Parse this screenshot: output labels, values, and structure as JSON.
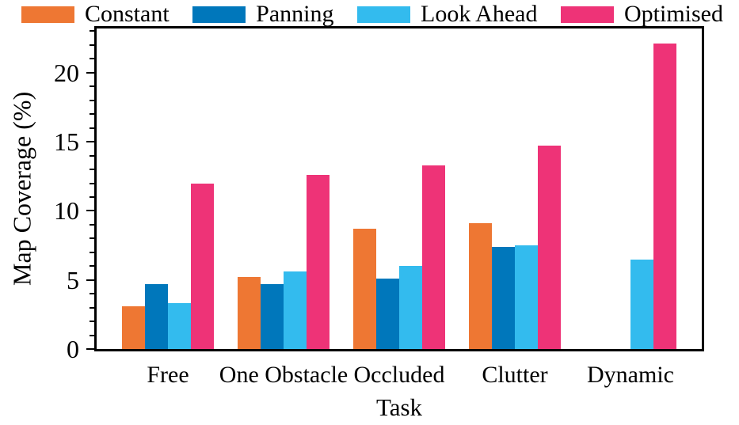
{
  "chart_data": {
    "type": "bar",
    "title": "",
    "xlabel": "Task",
    "ylabel": "Map Coverage (%)",
    "categories": [
      "Free",
      "One Obstacle",
      "Occluded",
      "Clutter",
      "Dynamic"
    ],
    "series": [
      {
        "name": "Constant",
        "color": "#EE7733",
        "values": [
          3.1,
          5.2,
          8.7,
          9.1,
          0
        ]
      },
      {
        "name": "Panning",
        "color": "#0077BB",
        "values": [
          4.7,
          4.7,
          5.1,
          7.4,
          0
        ]
      },
      {
        "name": "Look Ahead",
        "color": "#33BBEE",
        "values": [
          3.3,
          5.6,
          6.0,
          7.5,
          6.5
        ]
      },
      {
        "name": "Optimised",
        "color": "#EE3377",
        "values": [
          12.0,
          12.6,
          13.3,
          14.7,
          22.1
        ]
      }
    ],
    "ylim": [
      0,
      23.2
    ],
    "yticks": [
      0,
      5,
      10,
      15,
      20
    ],
    "ytick_labels": [
      "0",
      "5",
      "10",
      "15",
      "20"
    ],
    "minor_tick_step": 1,
    "grid": false,
    "legend_position": "top",
    "axis_color": "#000000",
    "background_color": "#ffffff"
  }
}
